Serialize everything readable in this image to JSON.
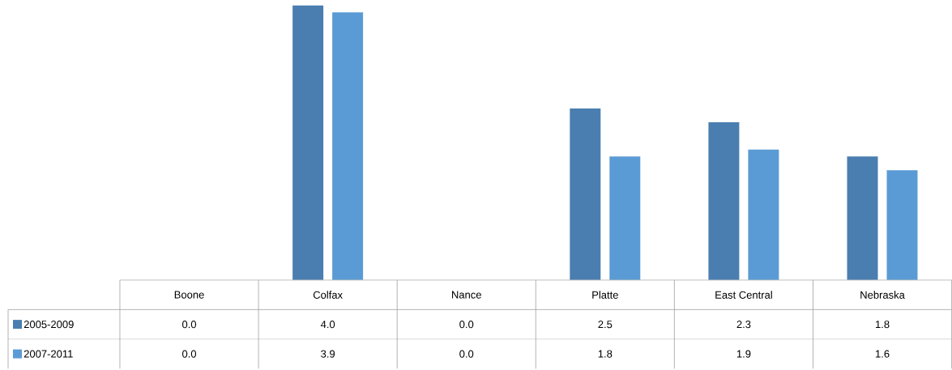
{
  "chart_data": {
    "type": "bar",
    "categories": [
      "Boone",
      "Colfax",
      "Nance",
      "Platte",
      "East Central",
      "Nebraska"
    ],
    "series": [
      {
        "name": "2005-2009",
        "color": "#4a7eb0",
        "values": [
          0.0,
          4.0,
          0.0,
          2.5,
          2.3,
          1.8
        ],
        "value_labels": [
          "0.0",
          "4.0",
          "0.0",
          "2.5",
          "2.3",
          "1.8"
        ]
      },
      {
        "name": "2007-2011",
        "color": "#5b9bd5",
        "values": [
          0.0,
          3.9,
          0.0,
          1.8,
          1.9,
          1.6
        ],
        "value_labels": [
          "0.0",
          "3.9",
          "0.0",
          "1.8",
          "1.9",
          "1.6"
        ]
      }
    ],
    "legend": "bottom"
  }
}
